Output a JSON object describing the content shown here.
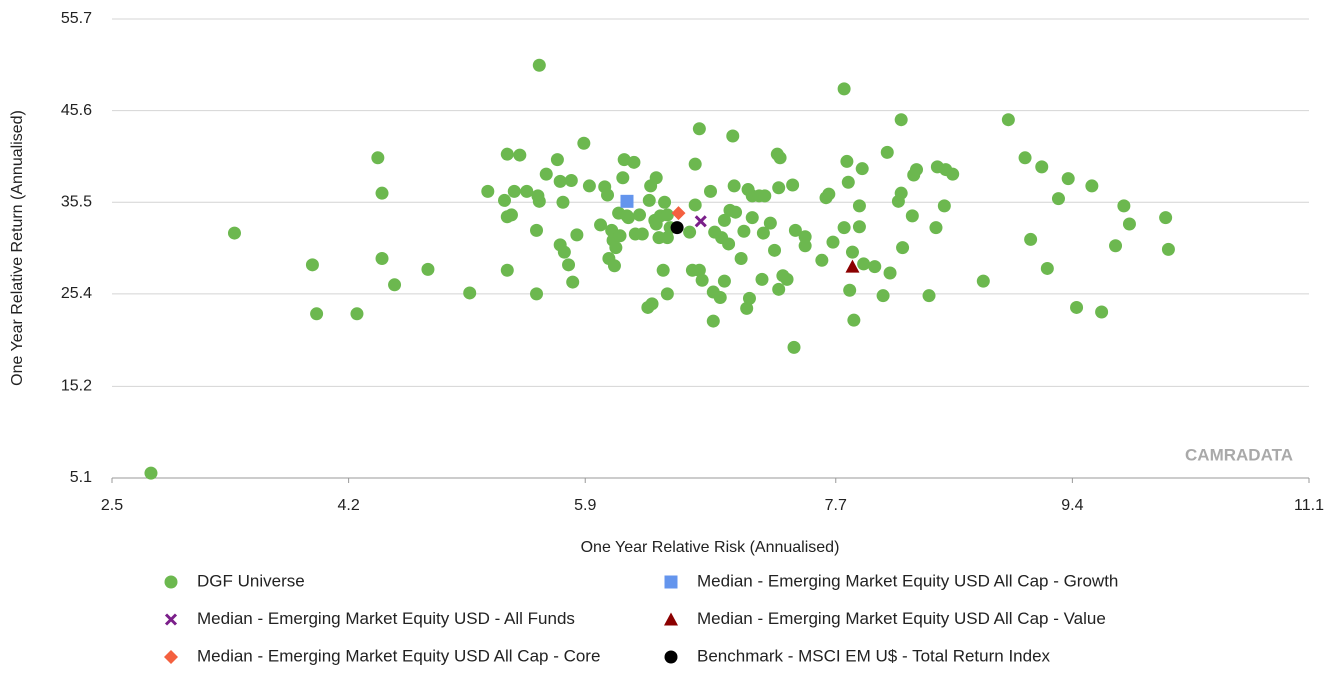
{
  "chart_data": {
    "type": "scatter",
    "x_label": "One Year Relative Risk (Annualised)",
    "y_label": "One Year Relative Return (Annualised)",
    "watermark": "CAMRADATA",
    "xlim": [
      2.5,
      11.1
    ],
    "xticks": [
      2.5,
      4.2,
      5.9,
      7.7,
      9.4,
      11.1
    ],
    "ylim": [
      5.1,
      55.7
    ],
    "yticks": [
      5.1,
      15.2,
      25.4,
      35.5,
      45.6,
      55.7
    ],
    "grid": true,
    "legend": "bottom",
    "series": [
      {
        "name": "DGF Universe",
        "color": "#6cb84f",
        "marker": "circle",
        "x": [
          2.78,
          3.38,
          3.94,
          3.97,
          4.26,
          4.41,
          4.44,
          4.44,
          4.53,
          4.77,
          5.07,
          5.2,
          5.32,
          5.34,
          5.34,
          5.34,
          5.37,
          5.39,
          5.43,
          5.48,
          5.55,
          5.55,
          5.56,
          5.57,
          5.57,
          5.62,
          5.7,
          5.72,
          5.72,
          5.74,
          5.75,
          5.78,
          5.8,
          5.81,
          5.84,
          5.89,
          5.93,
          6.01,
          6.04,
          6.06,
          6.07,
          6.09,
          6.1,
          6.11,
          6.12,
          6.14,
          6.15,
          6.17,
          6.18,
          6.2,
          6.21,
          6.25,
          6.26,
          6.29,
          6.31,
          6.35,
          6.36,
          6.37,
          6.38,
          6.4,
          6.41,
          6.41,
          6.43,
          6.44,
          6.46,
          6.47,
          6.49,
          6.49,
          6.49,
          6.51,
          6.65,
          6.67,
          6.69,
          6.69,
          6.72,
          6.72,
          6.74,
          6.8,
          6.82,
          6.82,
          6.83,
          6.87,
          6.88,
          6.9,
          6.9,
          6.93,
          6.94,
          6.96,
          6.97,
          6.98,
          7.02,
          7.04,
          7.06,
          7.07,
          7.08,
          7.1,
          7.1,
          7.15,
          7.17,
          7.18,
          7.19,
          7.23,
          7.26,
          7.28,
          7.29,
          7.29,
          7.3,
          7.32,
          7.35,
          7.39,
          7.4,
          7.41,
          7.48,
          7.48,
          7.6,
          7.63,
          7.65,
          7.68,
          7.76,
          7.76,
          7.78,
          7.79,
          7.8,
          7.82,
          7.83,
          7.87,
          7.87,
          7.89,
          7.9,
          7.98,
          8.04,
          8.07,
          8.09,
          8.15,
          8.17,
          8.17,
          8.18,
          8.25,
          8.26,
          8.28,
          8.37,
          8.42,
          8.43,
          8.48,
          8.49,
          8.54,
          8.76,
          8.94,
          9.06,
          9.1,
          9.18,
          9.22,
          9.3,
          9.37,
          9.43,
          9.54,
          9.61,
          9.71,
          9.77,
          9.81,
          10.07,
          10.09
        ],
        "y": [
          5.64,
          32.1,
          28.6,
          23.2,
          23.2,
          40.4,
          36.5,
          29.3,
          26.4,
          28.1,
          25.5,
          36.7,
          35.7,
          40.8,
          28.0,
          33.9,
          34.1,
          36.7,
          40.7,
          36.7,
          32.4,
          25.4,
          36.2,
          35.6,
          50.6,
          38.6,
          40.2,
          30.8,
          37.8,
          35.5,
          30.0,
          28.6,
          37.9,
          26.7,
          31.9,
          42.0,
          37.3,
          33.0,
          37.2,
          36.3,
          29.3,
          32.4,
          31.3,
          28.5,
          30.5,
          34.3,
          31.8,
          38.2,
          40.2,
          34.0,
          33.8,
          39.9,
          32.0,
          34.1,
          32.0,
          23.9,
          35.7,
          37.3,
          24.3,
          33.5,
          38.2,
          33.1,
          31.6,
          34.0,
          28.0,
          35.5,
          34.1,
          25.4,
          31.6,
          32.7,
          32.2,
          28.0,
          39.7,
          35.2,
          28.0,
          43.6,
          26.9,
          36.7,
          22.4,
          25.6,
          32.2,
          25.0,
          31.6,
          26.8,
          33.5,
          30.9,
          34.6,
          42.8,
          37.3,
          34.4,
          29.3,
          32.3,
          23.8,
          36.9,
          24.9,
          36.2,
          33.8,
          36.2,
          27.0,
          32.1,
          36.2,
          33.2,
          30.2,
          40.8,
          37.1,
          25.9,
          40.4,
          27.4,
          27.0,
          37.4,
          19.5,
          32.4,
          31.7,
          30.7,
          29.1,
          36.0,
          36.4,
          31.1,
          48.0,
          32.7,
          40.0,
          37.7,
          25.8,
          30.0,
          22.5,
          35.1,
          32.8,
          39.2,
          28.7,
          28.4,
          25.2,
          41.0,
          27.7,
          35.6,
          36.5,
          44.6,
          30.5,
          34.0,
          38.5,
          39.1,
          25.2,
          32.7,
          39.4,
          35.1,
          39.1,
          38.6,
          26.8,
          44.6,
          40.4,
          31.4,
          39.4,
          28.2,
          35.9,
          38.1,
          23.9,
          37.3,
          23.4,
          30.7,
          35.1,
          33.1,
          33.8,
          30.3
        ]
      },
      {
        "name": "Median -  Emerging Market Equity USD All Cap - Growth",
        "color": "#6495ed",
        "marker": "square",
        "x": [
          6.2
        ],
        "y": [
          35.6
        ]
      },
      {
        "name": "Median -  Emerging Market Equity USD - All Funds",
        "color": "#7b1f8a",
        "marker": "cross",
        "x": [
          6.73
        ],
        "y": [
          33.4
        ]
      },
      {
        "name": "Median -  Emerging Market Equity USD All Cap - Value",
        "color": "#8b0000",
        "marker": "triangle",
        "x": [
          7.82
        ],
        "y": [
          28.4
        ]
      },
      {
        "name": "Median -  Emerging Market Equity USD All Cap - Core",
        "color": "#f4603f",
        "marker": "diamond",
        "x": [
          6.57
        ],
        "y": [
          34.3
        ]
      },
      {
        "name": "Benchmark - MSCI EM U$ - Total Return Index",
        "color": "#000000",
        "marker": "circle",
        "x": [
          6.56
        ],
        "y": [
          32.7
        ]
      }
    ]
  }
}
